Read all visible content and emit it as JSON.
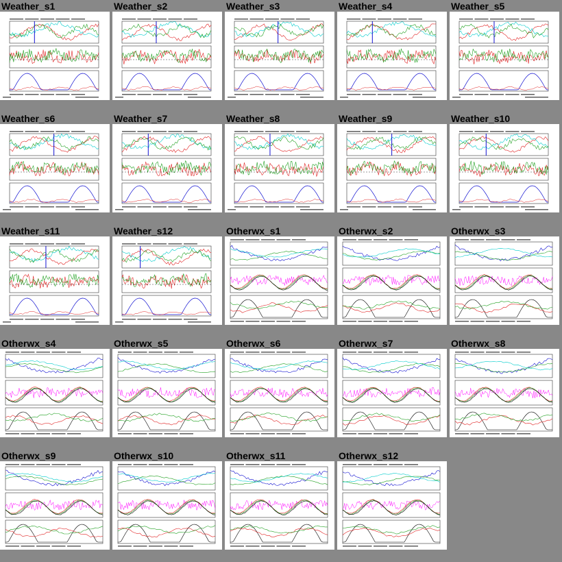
{
  "colors": {
    "background": "#888888",
    "panel": "#ffffff",
    "weather_series": [
      "#e02020",
      "#00cccc",
      "#20a020",
      "#1010d0"
    ],
    "otherwx_series": [
      "#e02020",
      "#20a020",
      "#00cccc",
      "#1010d0",
      "#ff00ff",
      "#000000"
    ]
  },
  "tiles": [
    {
      "title": "Weather_s1",
      "kind": "weather"
    },
    {
      "title": "Weather_s2",
      "kind": "weather"
    },
    {
      "title": "Weather_s3",
      "kind": "weather"
    },
    {
      "title": "Weather_s4",
      "kind": "weather"
    },
    {
      "title": "Weather_s5",
      "kind": "weather"
    },
    {
      "title": "Weather_s6",
      "kind": "weather"
    },
    {
      "title": "Weather_s7",
      "kind": "weather"
    },
    {
      "title": "Weather_s8",
      "kind": "weather"
    },
    {
      "title": "Weather_s9",
      "kind": "weather"
    },
    {
      "title": "Weather_s10",
      "kind": "weather"
    },
    {
      "title": "Weather_s11",
      "kind": "weather"
    },
    {
      "title": "Weather_s12",
      "kind": "weather"
    },
    {
      "title": "Otherwx_s1",
      "kind": "otherwx"
    },
    {
      "title": "Otherwx_s2",
      "kind": "otherwx"
    },
    {
      "title": "Otherwx_s3",
      "kind": "otherwx"
    },
    {
      "title": "Otherwx_s4",
      "kind": "otherwx"
    },
    {
      "title": "Otherwx_s5",
      "kind": "otherwx"
    },
    {
      "title": "Otherwx_s6",
      "kind": "otherwx"
    },
    {
      "title": "Otherwx_s7",
      "kind": "otherwx"
    },
    {
      "title": "Otherwx_s8",
      "kind": "otherwx"
    },
    {
      "title": "Otherwx_s9",
      "kind": "otherwx"
    },
    {
      "title": "Otherwx_s10",
      "kind": "otherwx"
    },
    {
      "title": "Otherwx_s11",
      "kind": "otherwx"
    },
    {
      "title": "Otherwx_s12",
      "kind": "otherwx"
    }
  ]
}
